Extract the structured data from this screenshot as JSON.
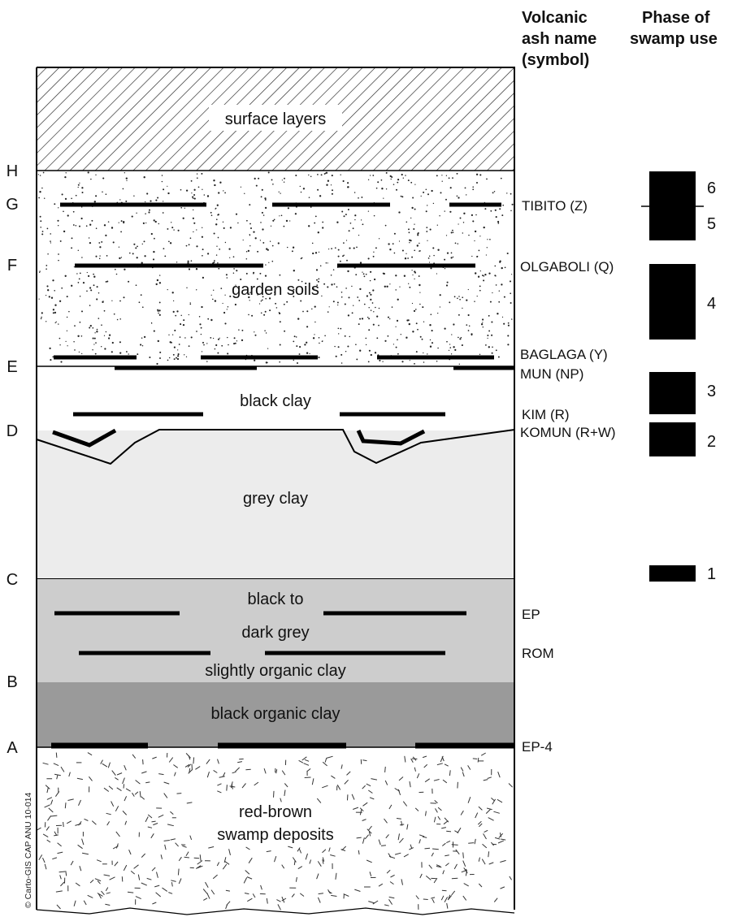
{
  "headers": {
    "ash_col": [
      "Volcanic",
      "ash name",
      "(symbol)"
    ],
    "phase_col": [
      "Phase of",
      "swamp use"
    ]
  },
  "layers": {
    "surface": "surface layers",
    "garden": "garden soils",
    "black_clay": "black clay",
    "grey_clay": "grey clay",
    "dark_grey": [
      "black to",
      "dark grey",
      "slightly organic clay"
    ],
    "black_organic": "black organic clay",
    "red_brown": [
      "red-brown",
      "swamp deposits"
    ]
  },
  "horizons": [
    "A",
    "B",
    "C",
    "D",
    "E",
    "F",
    "G",
    "H"
  ],
  "ashes": {
    "tibito": "TIBITO (Z)",
    "olgaboli": "OLGABOLI (Q)",
    "baglaga": "BAGLAGA (Y)",
    "mun": "MUN (NP)",
    "kim": "KIM (R)",
    "komun": "KOMUN (R+W)",
    "ep": "EP",
    "rom": "ROM",
    "ep4": "EP-4"
  },
  "phases": [
    "1",
    "2",
    "3",
    "4",
    "5",
    "6"
  ],
  "credit": "© Carto-GIS CAP ANU 10-014",
  "colors": {
    "grey_clay": "#ececec",
    "dark_grey_clay": "#cdcdcd",
    "black_organic_clay": "#9a9a9a",
    "ash_line": "#000000"
  }
}
